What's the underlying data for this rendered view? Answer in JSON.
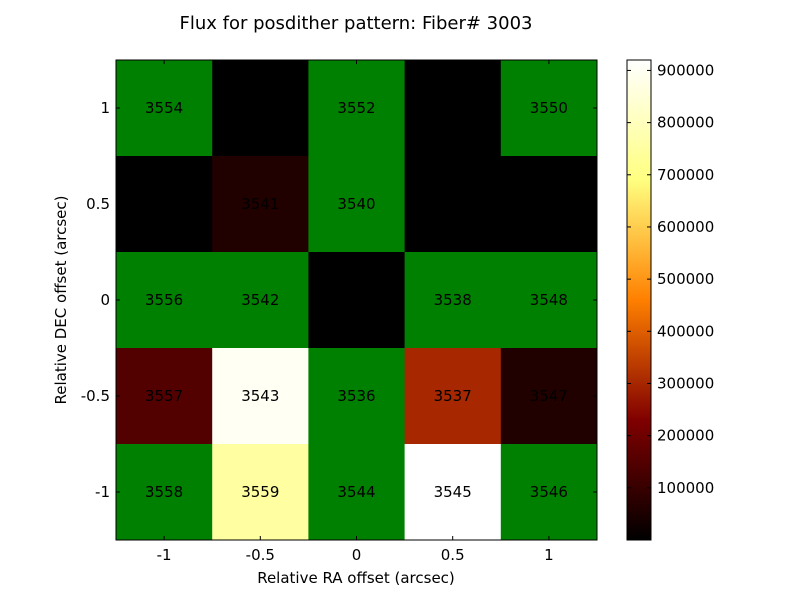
{
  "chart_data": {
    "type": "heatmap",
    "title": "Flux for posdither pattern: Fiber# 3003",
    "xlabel": "Relative RA offset (arcsec)",
    "ylabel": "Relative DEC offset (arcsec)",
    "x_ticks": [
      "-1",
      "-0.5",
      "0",
      "0.5",
      "1"
    ],
    "y_ticks": [
      "1",
      "0.5",
      "0",
      "-0.5",
      "-1"
    ],
    "cbar_ticks": [
      "100000",
      "200000",
      "300000",
      "400000",
      "500000",
      "600000",
      "700000",
      "800000",
      "900000"
    ],
    "cbar_tick_values": [
      100000,
      200000,
      300000,
      400000,
      500000,
      600000,
      700000,
      800000,
      900000
    ],
    "cbar_range": [
      0,
      920000
    ],
    "colormap": "afmhot",
    "missing_color": "#008000",
    "rows": [
      [
        {
          "v": null,
          "label": "3554"
        },
        {
          "v": 0,
          "label": ""
        },
        {
          "v": null,
          "label": "3552"
        },
        {
          "v": 0,
          "label": ""
        },
        {
          "v": null,
          "label": "3550"
        }
      ],
      [
        {
          "v": 0,
          "label": ""
        },
        {
          "v": 60000,
          "label": "3541"
        },
        {
          "v": null,
          "label": "3540"
        },
        {
          "v": 0,
          "label": ""
        },
        {
          "v": 0,
          "label": ""
        }
      ],
      [
        {
          "v": null,
          "label": "3556"
        },
        {
          "v": null,
          "label": "3542"
        },
        {
          "v": 0,
          "label": ""
        },
        {
          "v": null,
          "label": "3538"
        },
        {
          "v": null,
          "label": "3548"
        }
      ],
      [
        {
          "v": 150000,
          "label": "3557"
        },
        {
          "v": 900000,
          "label": "3543"
        },
        {
          "v": null,
          "label": "3536"
        },
        {
          "v": 300000,
          "label": "3537"
        },
        {
          "v": 60000,
          "label": "3547"
        }
      ],
      [
        {
          "v": null,
          "label": "3558"
        },
        {
          "v": 750000,
          "label": "3559"
        },
        {
          "v": null,
          "label": "3544"
        },
        {
          "v": 920000,
          "label": "3545"
        },
        {
          "v": null,
          "label": "3546"
        }
      ]
    ]
  }
}
